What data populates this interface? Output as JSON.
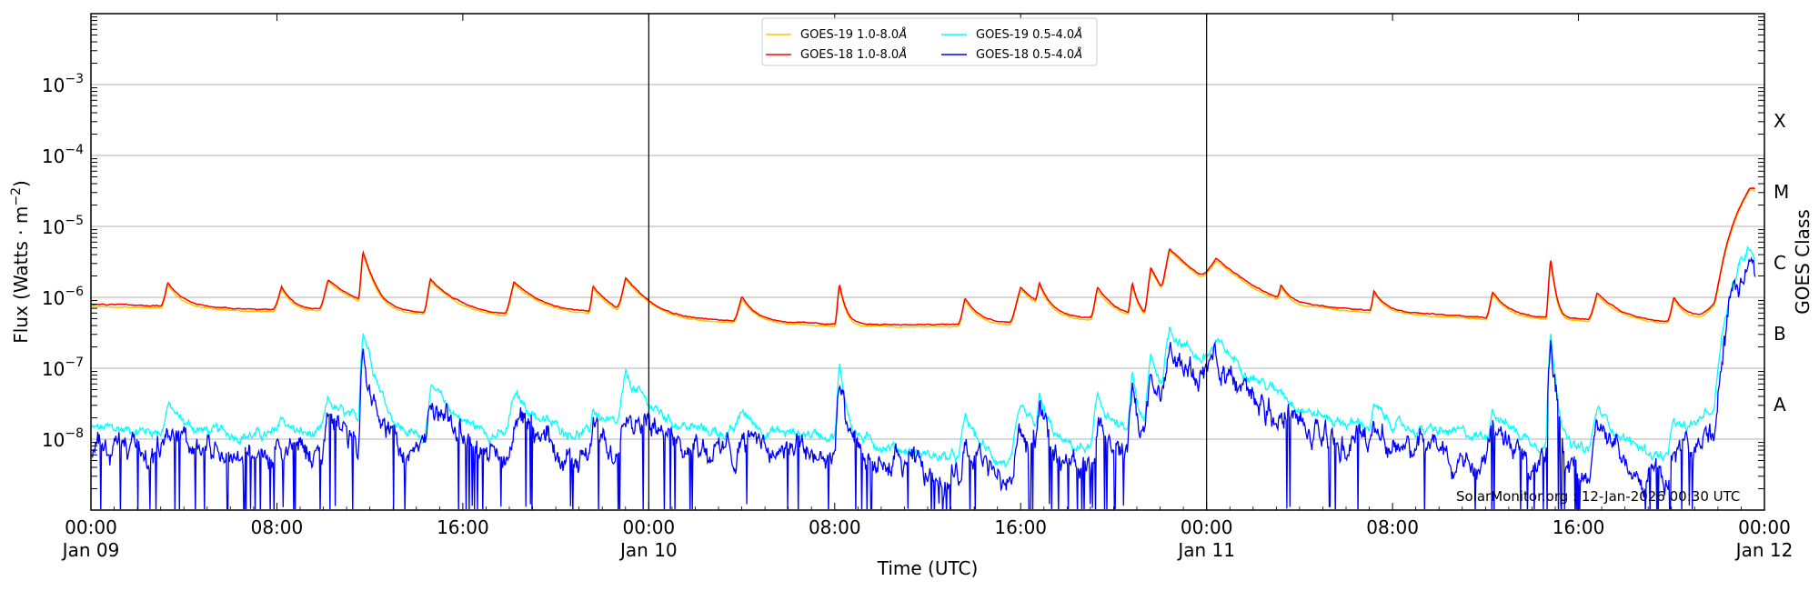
{
  "chart_data": {
    "type": "line",
    "title": "",
    "xlabel": "Time (UTC)",
    "ylabel": "Flux (Watts · m^-2)",
    "ylabel_right": "GOES Class",
    "yscale": "log",
    "ylim": [
      1e-09,
      0.01
    ],
    "xlim_hours": [
      0,
      72
    ],
    "grid": "horizontal at decades",
    "legend_position": "upper center",
    "x_ticks": [
      {
        "hour": 0,
        "label": "00:00",
        "sublabel": "Jan 09"
      },
      {
        "hour": 8,
        "label": "08:00",
        "sublabel": ""
      },
      {
        "hour": 16,
        "label": "16:00",
        "sublabel": ""
      },
      {
        "hour": 24,
        "label": "00:00",
        "sublabel": "Jan 10"
      },
      {
        "hour": 32,
        "label": "08:00",
        "sublabel": ""
      },
      {
        "hour": 40,
        "label": "16:00",
        "sublabel": ""
      },
      {
        "hour": 48,
        "label": "00:00",
        "sublabel": "Jan 11"
      },
      {
        "hour": 56,
        "label": "08:00",
        "sublabel": ""
      },
      {
        "hour": 64,
        "label": "16:00",
        "sublabel": ""
      },
      {
        "hour": 72,
        "label": "00:00",
        "sublabel": "Jan 12"
      }
    ],
    "y_ticks": [
      {
        "exp": -3,
        "label": "10",
        "sup": "−3"
      },
      {
        "exp": -4,
        "label": "10",
        "sup": "−4"
      },
      {
        "exp": -5,
        "label": "10",
        "sup": "−5"
      },
      {
        "exp": -6,
        "label": "10",
        "sup": "−6"
      },
      {
        "exp": -7,
        "label": "10",
        "sup": "−7"
      },
      {
        "exp": -8,
        "label": "10",
        "sup": "−8"
      }
    ],
    "goes_classes": [
      {
        "label": "X",
        "exp": -3.5
      },
      {
        "label": "M",
        "exp": -4.5
      },
      {
        "label": "C",
        "exp": -5.5
      },
      {
        "label": "B",
        "exp": -6.5
      },
      {
        "label": "A",
        "exp": -7.5
      }
    ],
    "day_boundaries_hours": [
      24,
      48
    ],
    "series": [
      {
        "name": "GOES-19 1.0-8.0Å",
        "color": "#ffc800",
        "band": "long",
        "offset_dex": -0.03
      },
      {
        "name": "GOES-18 1.0-8.0Å",
        "color": "#ff0000",
        "band": "long",
        "offset_dex": 0.0
      },
      {
        "name": "GOES-19 0.5-4.0Å",
        "color": "#00ffff",
        "band": "short",
        "offset_dex": 0.0
      },
      {
        "name": "GOES-18 0.5-4.0Å",
        "color": "#0000ff",
        "band": "short",
        "offset_dex": 0.0
      }
    ],
    "long_band_baseline": [
      [
        0,
        8e-07
      ],
      [
        4,
        7.5e-07
      ],
      [
        8,
        6.6e-07
      ],
      [
        10,
        6.8e-07
      ],
      [
        14,
        6e-07
      ],
      [
        18,
        5.6e-07
      ],
      [
        22,
        6e-07
      ],
      [
        24,
        4.8e-07
      ],
      [
        28,
        4.6e-07
      ],
      [
        32,
        4.2e-07
      ],
      [
        36,
        4.1e-07
      ],
      [
        40,
        4.3e-07
      ],
      [
        44,
        5e-07
      ],
      [
        47,
        5.6e-07
      ],
      [
        48,
        5.2e-07
      ],
      [
        50,
        5e-07
      ],
      [
        53,
        6.5e-07
      ],
      [
        56,
        6.2e-07
      ],
      [
        60,
        5.2e-07
      ],
      [
        64,
        5e-07
      ],
      [
        68,
        4.4e-07
      ],
      [
        69.3,
        5.5e-07
      ],
      [
        70,
        9e-07
      ]
    ],
    "short_band_baseline": [
      [
        0,
        1.4e-08
      ],
      [
        4,
        1.3e-08
      ],
      [
        8,
        1.1e-08
      ],
      [
        12,
        1.1e-08
      ],
      [
        16,
        1e-08
      ],
      [
        20,
        1e-08
      ],
      [
        24,
        1.2e-08
      ],
      [
        28,
        1.2e-08
      ],
      [
        32,
        1.2e-08
      ],
      [
        36,
        6e-09
      ],
      [
        40,
        4e-09
      ],
      [
        44,
        8e-09
      ],
      [
        48,
        1.3e-08
      ],
      [
        52,
        1.3e-08
      ],
      [
        56,
        1.4e-08
      ],
      [
        60,
        1.1e-08
      ],
      [
        64,
        7e-09
      ],
      [
        68,
        5e-09
      ],
      [
        69.5,
        2.5e-08
      ]
    ],
    "flares": [
      {
        "start_h": 3.0,
        "peak_h": 3.3,
        "decay_h": 0.5,
        "long_peak": 8.5e-07,
        "short_peak": 1.8e-08
      },
      {
        "start_h": 7.8,
        "peak_h": 8.2,
        "decay_h": 0.4,
        "long_peak": 7.5e-07,
        "short_peak": 1e-08
      },
      {
        "start_h": 9.8,
        "peak_h": 10.2,
        "decay_h": 1.0,
        "long_peak": 1.1e-06,
        "short_peak": 2.2e-08
      },
      {
        "start_h": 11.5,
        "peak_h": 11.7,
        "decay_h": 0.35,
        "long_peak": 3.5e-06,
        "short_peak": 3.5e-07
      },
      {
        "start_h": 14.3,
        "peak_h": 14.6,
        "decay_h": 0.9,
        "long_peak": 1.2e-06,
        "short_peak": 4.3e-08
      },
      {
        "start_h": 17.8,
        "peak_h": 18.2,
        "decay_h": 1.0,
        "long_peak": 1.05e-06,
        "short_peak": 3e-08
      },
      {
        "start_h": 21.4,
        "peak_h": 21.6,
        "decay_h": 0.6,
        "long_peak": 8e-07,
        "short_peak": 1.5e-08
      },
      {
        "start_h": 22.6,
        "peak_h": 23.0,
        "decay_h": 0.9,
        "long_peak": 1.25e-06,
        "short_peak": 5.8e-08
      },
      {
        "start_h": 27.6,
        "peak_h": 28.0,
        "decay_h": 0.5,
        "long_peak": 5.5e-07,
        "short_peak": 1.3e-08
      },
      {
        "start_h": 32.0,
        "peak_h": 32.2,
        "decay_h": 0.2,
        "long_peak": 1.15e-06,
        "short_peak": 9e-08
      },
      {
        "start_h": 37.3,
        "peak_h": 37.6,
        "decay_h": 0.5,
        "long_peak": 5.5e-07,
        "short_peak": 1.5e-08
      },
      {
        "start_h": 39.5,
        "peak_h": 40.0,
        "decay_h": 0.9,
        "long_peak": 9.5e-07,
        "short_peak": 2e-08
      },
      {
        "start_h": 40.6,
        "peak_h": 40.8,
        "decay_h": 0.3,
        "long_peak": 8e-07,
        "short_peak": 2.5e-08
      },
      {
        "start_h": 43.0,
        "peak_h": 43.3,
        "decay_h": 0.6,
        "long_peak": 8.5e-07,
        "short_peak": 3e-08
      },
      {
        "start_h": 44.6,
        "peak_h": 44.8,
        "decay_h": 0.2,
        "long_peak": 1.05e-06,
        "short_peak": 7e-08
      },
      {
        "start_h": 45.3,
        "peak_h": 45.6,
        "decay_h": 0.5,
        "long_peak": 2.1e-06,
        "short_peak": 1.3e-07
      },
      {
        "start_h": 46.0,
        "peak_h": 46.4,
        "decay_h": 1.4,
        "long_peak": 3.9e-06,
        "short_peak": 3.2e-07
      },
      {
        "start_h": 47.6,
        "peak_h": 48.4,
        "decay_h": 1.4,
        "long_peak": 2.1e-06,
        "short_peak": 1.35e-07
      },
      {
        "start_h": 51.0,
        "peak_h": 51.2,
        "decay_h": 0.3,
        "long_peak": 5.5e-07,
        "short_peak": 1.2e-08
      },
      {
        "start_h": 55.0,
        "peak_h": 55.2,
        "decay_h": 0.4,
        "long_peak": 6e-07,
        "short_peak": 1.4e-08
      },
      {
        "start_h": 60.0,
        "peak_h": 60.3,
        "decay_h": 0.6,
        "long_peak": 6.5e-07,
        "short_peak": 1.8e-08
      },
      {
        "start_h": 62.6,
        "peak_h": 62.8,
        "decay_h": 0.15,
        "long_peak": 3e-06,
        "short_peak": 3e-07
      },
      {
        "start_h": 64.4,
        "peak_h": 64.8,
        "decay_h": 0.8,
        "long_peak": 6.5e-07,
        "short_peak": 2e-08
      },
      {
        "start_h": 67.8,
        "peak_h": 68.1,
        "decay_h": 0.4,
        "long_peak": 5.5e-07,
        "short_peak": 1.3e-08
      },
      {
        "start_h": 69.8,
        "peak_h": 71.4,
        "decay_h": 99,
        "long_peak": 3.5e-05,
        "short_peak": 5.4e-06
      }
    ],
    "end_values": {
      "hour": 71.6,
      "long": 3.4e-05,
      "short": 4.3e-06
    },
    "annotations": [
      "SolarMonitor.org : 12-Jan-2026 00:30 UTC"
    ]
  },
  "labels": {
    "xlabel": "Time (UTC)",
    "ylabel_main": "Flux (Watts · m",
    "ylabel_sup": "−2",
    "ylabel_close": ")",
    "ylabel_right": "GOES Class",
    "watermark": "SolarMonitor.org : 12-Jan-2026 00:30 UTC"
  },
  "legend": {
    "items": [
      {
        "label": "GOES-19 1.0-8.0",
        "suffix": "Å",
        "color": "#ffc800"
      },
      {
        "label": "GOES-18 1.0-8.0",
        "suffix": "Å",
        "color": "#ff0000"
      },
      {
        "label": "GOES-19 0.5-4.0",
        "suffix": "Å",
        "color": "#00ffff"
      },
      {
        "label": "GOES-18 0.5-4.0",
        "suffix": "Å",
        "color": "#0000ff"
      }
    ]
  }
}
